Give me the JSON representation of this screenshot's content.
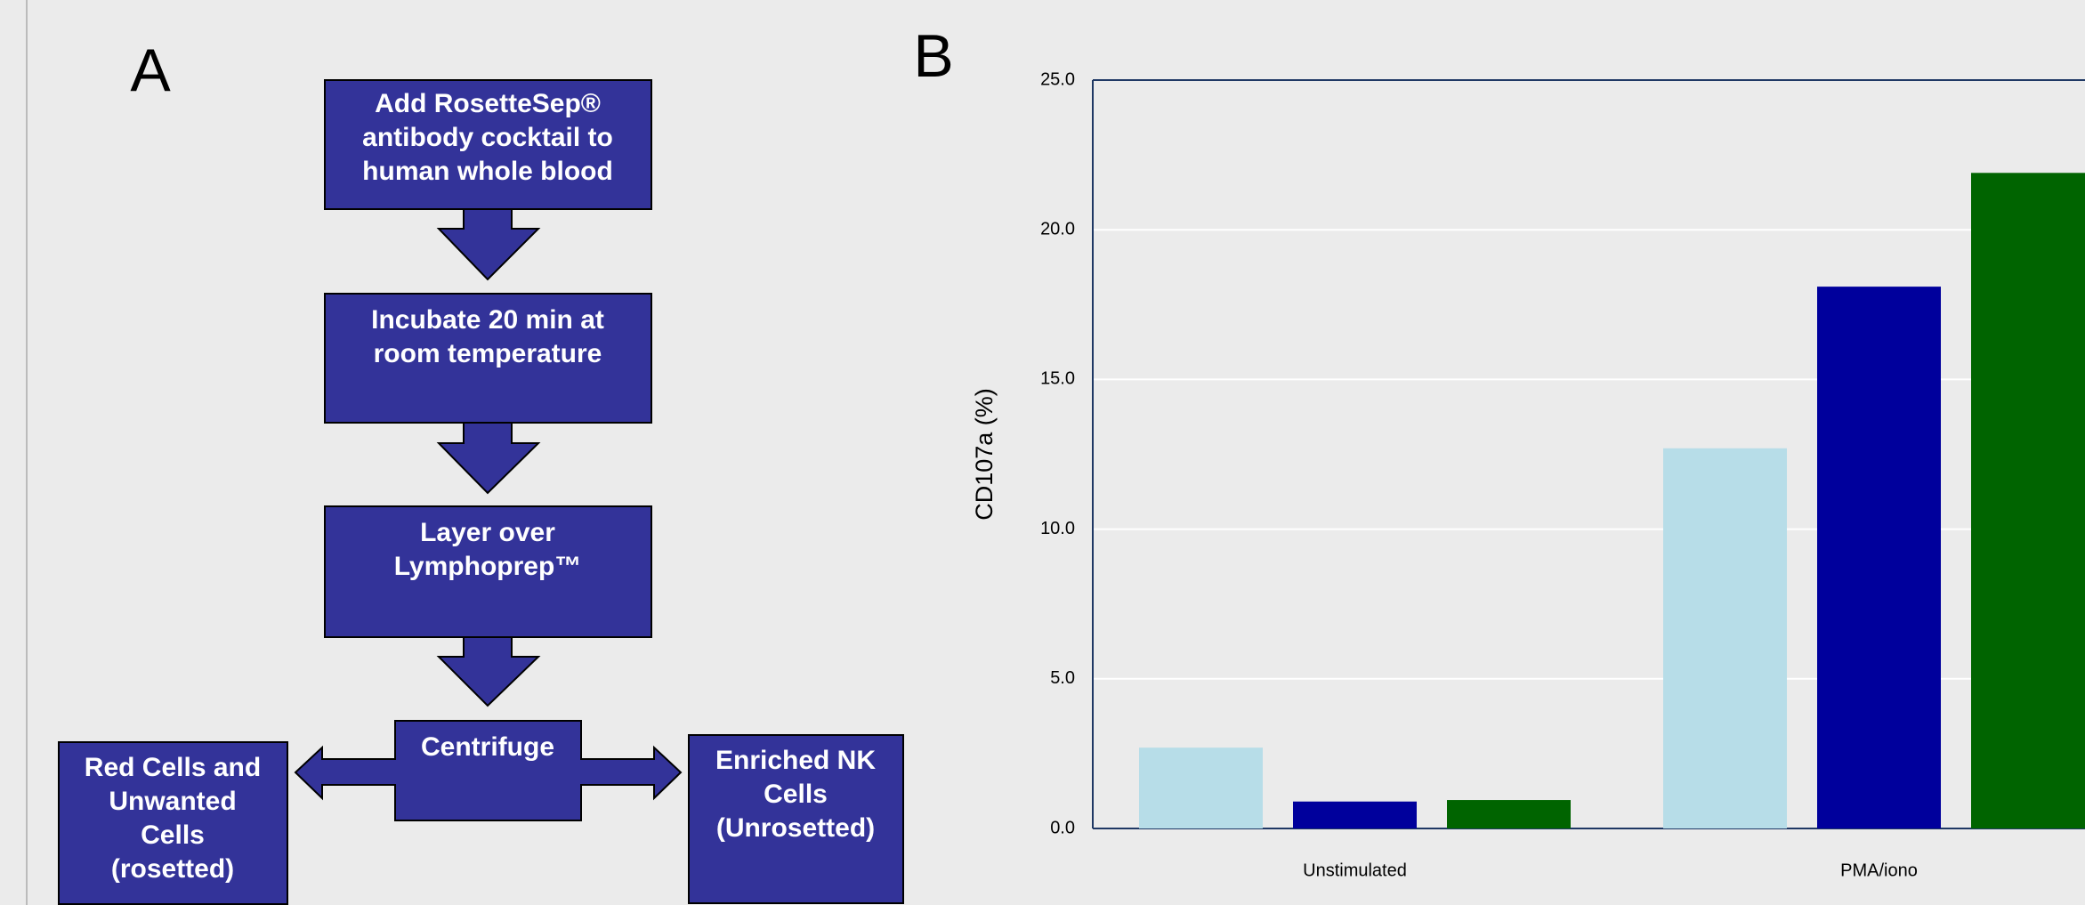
{
  "panel_a": {
    "label": "A",
    "nodes": [
      {
        "lines": [
          "Add RosetteSep®",
          "antibody cocktail to",
          "human whole blood"
        ]
      },
      {
        "lines": [
          "Incubate 20 min at",
          "room temperature"
        ]
      },
      {
        "lines": [
          "Layer over",
          "Lymphoprep™"
        ]
      },
      {
        "lines": [
          "Centrifuge"
        ]
      },
      {
        "lines": [
          "Red Cells and",
          "Unwanted",
          "Cells",
          "(rosetted)"
        ]
      },
      {
        "lines": [
          "Enriched NK",
          "Cells",
          "(Unrosetted)"
        ]
      }
    ]
  },
  "panel_b": {
    "label": "B"
  },
  "chart_data": {
    "type": "bar",
    "y_label": "CD107a (%)",
    "categories": [
      "Unstimulated",
      "PMA/iono"
    ],
    "series": [
      {
        "color": "#b7dde8",
        "values": [
          2.7,
          12.7
        ]
      },
      {
        "color": "#00009c",
        "values": [
          0.9,
          18.1
        ]
      },
      {
        "color": "#006400",
        "values": [
          0.95,
          21.9
        ]
      }
    ],
    "ylim": [
      0,
      25
    ],
    "yticks": [
      {
        "value": 0,
        "label": "0.0"
      },
      {
        "value": 5,
        "label": "5.0"
      },
      {
        "value": 10,
        "label": "10.0"
      },
      {
        "value": 15,
        "label": "15.0"
      },
      {
        "value": 20,
        "label": "20.0"
      },
      {
        "value": 25,
        "label": "25.0"
      }
    ],
    "grid": true
  }
}
